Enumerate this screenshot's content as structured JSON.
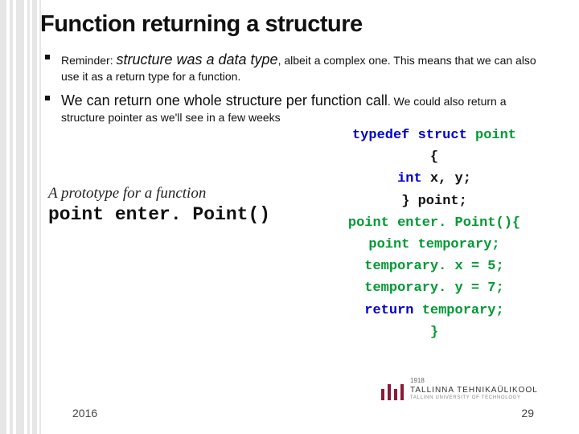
{
  "title": "Function returning a structure",
  "bullets": [
    {
      "prefix": "Reminder: ",
      "emph": "structure was a data type",
      "rest": ", albeit a complex one. This means that we can also use it as a return type for a function.",
      "emph_style": "italic"
    },
    {
      "prefix": "",
      "emph": "We can return one whole structure per function call",
      "rest": ". We could also return a structure pointer as we'll see in a few weeks",
      "emph_style": "normal"
    }
  ],
  "prototype": {
    "label": "A prototype for a function",
    "code": "point enter. Point()"
  },
  "code": {
    "lines": [
      [
        {
          "t": "typedef struct ",
          "c": "blue"
        },
        {
          "t": "point",
          "c": "green"
        }
      ],
      [
        {
          "t": "{",
          "c": "black"
        }
      ],
      [
        {
          "t": "int ",
          "c": "blue"
        },
        {
          "t": "x, y;",
          "c": "black"
        }
      ],
      [
        {
          "t": "} point;",
          "c": "black"
        }
      ],
      [
        {
          "t": "point enter. Point(){",
          "c": "green"
        }
      ],
      [
        {
          "t": "point temporary;",
          "c": "green"
        }
      ],
      [
        {
          "t": "temporary. x = 5;",
          "c": "green"
        }
      ],
      [
        {
          "t": "temporary. y = 7;",
          "c": "green"
        }
      ],
      [
        {
          "t": "return ",
          "c": "blue"
        },
        {
          "t": "temporary;",
          "c": "green"
        }
      ],
      [
        {
          "t": "}",
          "c": "green"
        }
      ]
    ]
  },
  "logo": {
    "year": "1918",
    "name": "TALLINNA TEHNIKAÜLIKOOL",
    "sub": "TALLINN UNIVERSITY OF TECHNOLOGY"
  },
  "footer": {
    "year": "2016",
    "page": "29"
  },
  "colors": {
    "blue": "#0000cc",
    "green": "#009933",
    "black": "#111111",
    "logo_bar": "#8b1a3a"
  }
}
